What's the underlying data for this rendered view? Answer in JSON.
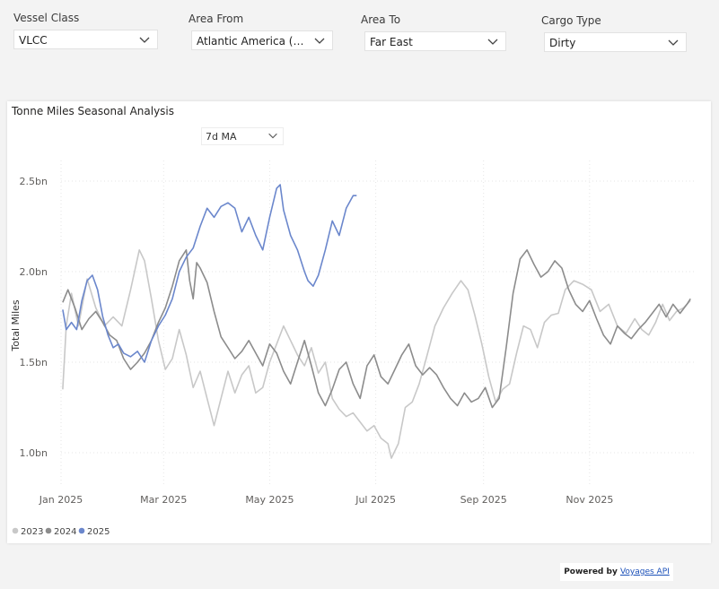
{
  "filters": [
    {
      "label": "Vessel Class",
      "value": "VLCC"
    },
    {
      "label": "Area From",
      "value": "Atlantic America (Parent..."
    },
    {
      "label": "Area To",
      "value": "Far East"
    },
    {
      "label": "Cargo Type",
      "value": "Dirty"
    }
  ],
  "card": {
    "title": "Tonne Miles Seasonal Analysis",
    "ma_value": "7d MA"
  },
  "powered": {
    "prefix": "Powered by",
    "link": "Voyages API"
  },
  "chart_data": {
    "type": "line",
    "title": "Tonne Miles Seasonal Analysis",
    "xlabel": "",
    "ylabel": "Total Miles",
    "x_ticks": [
      "Jan 2025",
      "Mar 2025",
      "May 2025",
      "Jul 2025",
      "Sep 2025",
      "Nov 2025"
    ],
    "y_ticks": [
      "1.0bn",
      "1.5bn",
      "2.0bn",
      "2.5bn"
    ],
    "ylim": [
      0.8,
      2.68
    ],
    "grid": true,
    "legend_position": "bottom-left",
    "series": [
      {
        "name": "2023",
        "color": "#c8c8c8",
        "points": [
          [
            1,
            1.35
          ],
          [
            3,
            1.7
          ],
          [
            6,
            1.88
          ],
          [
            10,
            1.7
          ],
          [
            15,
            1.96
          ],
          [
            20,
            1.8
          ],
          [
            25,
            1.7
          ],
          [
            30,
            1.75
          ],
          [
            35,
            1.7
          ],
          [
            40,
            1.9
          ],
          [
            45,
            2.12
          ],
          [
            48,
            2.06
          ],
          [
            52,
            1.85
          ],
          [
            56,
            1.62
          ],
          [
            60,
            1.46
          ],
          [
            64,
            1.52
          ],
          [
            68,
            1.68
          ],
          [
            72,
            1.54
          ],
          [
            76,
            1.36
          ],
          [
            80,
            1.45
          ],
          [
            84,
            1.3
          ],
          [
            88,
            1.15
          ],
          [
            92,
            1.3
          ],
          [
            96,
            1.45
          ],
          [
            100,
            1.33
          ],
          [
            104,
            1.43
          ],
          [
            108,
            1.48
          ],
          [
            112,
            1.33
          ],
          [
            116,
            1.36
          ],
          [
            120,
            1.5
          ],
          [
            124,
            1.6
          ],
          [
            128,
            1.7
          ],
          [
            132,
            1.62
          ],
          [
            136,
            1.54
          ],
          [
            140,
            1.48
          ],
          [
            144,
            1.58
          ],
          [
            148,
            1.44
          ],
          [
            152,
            1.5
          ],
          [
            156,
            1.3
          ],
          [
            160,
            1.24
          ],
          [
            164,
            1.2
          ],
          [
            168,
            1.22
          ],
          [
            172,
            1.17
          ],
          [
            176,
            1.12
          ],
          [
            180,
            1.15
          ],
          [
            184,
            1.08
          ],
          [
            188,
            1.05
          ],
          [
            190,
            0.97
          ],
          [
            194,
            1.05
          ],
          [
            198,
            1.25
          ],
          [
            202,
            1.28
          ],
          [
            206,
            1.38
          ],
          [
            210,
            1.52
          ],
          [
            215,
            1.7
          ],
          [
            220,
            1.8
          ],
          [
            225,
            1.88
          ],
          [
            230,
            1.95
          ],
          [
            234,
            1.9
          ],
          [
            238,
            1.76
          ],
          [
            242,
            1.6
          ],
          [
            246,
            1.42
          ],
          [
            250,
            1.28
          ],
          [
            254,
            1.35
          ],
          [
            258,
            1.38
          ],
          [
            262,
            1.55
          ],
          [
            266,
            1.7
          ],
          [
            270,
            1.68
          ],
          [
            274,
            1.58
          ],
          [
            278,
            1.72
          ],
          [
            282,
            1.76
          ],
          [
            286,
            1.77
          ],
          [
            290,
            1.9
          ],
          [
            295,
            1.95
          ],
          [
            300,
            1.93
          ],
          [
            305,
            1.9
          ],
          [
            310,
            1.78
          ],
          [
            315,
            1.82
          ],
          [
            320,
            1.7
          ],
          [
            325,
            1.66
          ],
          [
            330,
            1.74
          ],
          [
            334,
            1.68
          ],
          [
            338,
            1.65
          ],
          [
            342,
            1.72
          ],
          [
            346,
            1.82
          ],
          [
            350,
            1.73
          ],
          [
            354,
            1.78
          ],
          [
            358,
            1.8
          ],
          [
            362,
            1.84
          ]
        ]
      },
      {
        "name": "2024",
        "color": "#8c8c8c",
        "points": [
          [
            1,
            1.83
          ],
          [
            4,
            1.9
          ],
          [
            8,
            1.8
          ],
          [
            12,
            1.68
          ],
          [
            16,
            1.74
          ],
          [
            20,
            1.78
          ],
          [
            24,
            1.72
          ],
          [
            28,
            1.65
          ],
          [
            32,
            1.62
          ],
          [
            36,
            1.52
          ],
          [
            40,
            1.46
          ],
          [
            44,
            1.5
          ],
          [
            48,
            1.55
          ],
          [
            52,
            1.62
          ],
          [
            56,
            1.72
          ],
          [
            60,
            1.8
          ],
          [
            64,
            1.92
          ],
          [
            68,
            2.06
          ],
          [
            72,
            2.12
          ],
          [
            74,
            1.95
          ],
          [
            76,
            1.85
          ],
          [
            78,
            2.05
          ],
          [
            80,
            2.02
          ],
          [
            84,
            1.94
          ],
          [
            88,
            1.78
          ],
          [
            92,
            1.64
          ],
          [
            96,
            1.58
          ],
          [
            100,
            1.52
          ],
          [
            104,
            1.56
          ],
          [
            108,
            1.62
          ],
          [
            112,
            1.55
          ],
          [
            116,
            1.48
          ],
          [
            120,
            1.6
          ],
          [
            124,
            1.55
          ],
          [
            128,
            1.45
          ],
          [
            132,
            1.38
          ],
          [
            136,
            1.5
          ],
          [
            140,
            1.62
          ],
          [
            144,
            1.48
          ],
          [
            148,
            1.33
          ],
          [
            152,
            1.26
          ],
          [
            156,
            1.35
          ],
          [
            160,
            1.46
          ],
          [
            164,
            1.5
          ],
          [
            168,
            1.38
          ],
          [
            172,
            1.3
          ],
          [
            176,
            1.48
          ],
          [
            180,
            1.54
          ],
          [
            184,
            1.42
          ],
          [
            188,
            1.38
          ],
          [
            192,
            1.46
          ],
          [
            196,
            1.54
          ],
          [
            200,
            1.6
          ],
          [
            204,
            1.48
          ],
          [
            208,
            1.43
          ],
          [
            212,
            1.47
          ],
          [
            216,
            1.43
          ],
          [
            220,
            1.36
          ],
          [
            224,
            1.3
          ],
          [
            228,
            1.26
          ],
          [
            232,
            1.33
          ],
          [
            236,
            1.28
          ],
          [
            240,
            1.3
          ],
          [
            244,
            1.36
          ],
          [
            248,
            1.25
          ],
          [
            252,
            1.3
          ],
          [
            256,
            1.58
          ],
          [
            260,
            1.88
          ],
          [
            264,
            2.07
          ],
          [
            268,
            2.12
          ],
          [
            272,
            2.04
          ],
          [
            276,
            1.97
          ],
          [
            280,
            2.0
          ],
          [
            284,
            2.06
          ],
          [
            288,
            2.02
          ],
          [
            292,
            1.9
          ],
          [
            296,
            1.82
          ],
          [
            300,
            1.78
          ],
          [
            304,
            1.84
          ],
          [
            308,
            1.74
          ],
          [
            312,
            1.65
          ],
          [
            316,
            1.6
          ],
          [
            320,
            1.7
          ],
          [
            324,
            1.66
          ],
          [
            328,
            1.63
          ],
          [
            332,
            1.68
          ],
          [
            336,
            1.72
          ],
          [
            340,
            1.77
          ],
          [
            344,
            1.82
          ],
          [
            348,
            1.75
          ],
          [
            352,
            1.82
          ],
          [
            356,
            1.77
          ],
          [
            360,
            1.82
          ],
          [
            362,
            1.85
          ]
        ]
      },
      {
        "name": "2025",
        "color": "#6b87cc",
        "points": [
          [
            1,
            1.79
          ],
          [
            3,
            1.68
          ],
          [
            6,
            1.72
          ],
          [
            9,
            1.68
          ],
          [
            12,
            1.84
          ],
          [
            15,
            1.95
          ],
          [
            18,
            1.98
          ],
          [
            21,
            1.9
          ],
          [
            24,
            1.75
          ],
          [
            27,
            1.65
          ],
          [
            30,
            1.58
          ],
          [
            33,
            1.6
          ],
          [
            36,
            1.55
          ],
          [
            40,
            1.53
          ],
          [
            44,
            1.56
          ],
          [
            48,
            1.5
          ],
          [
            52,
            1.62
          ],
          [
            56,
            1.7
          ],
          [
            60,
            1.76
          ],
          [
            64,
            1.85
          ],
          [
            68,
            2.0
          ],
          [
            72,
            2.08
          ],
          [
            76,
            2.13
          ],
          [
            80,
            2.25
          ],
          [
            84,
            2.35
          ],
          [
            88,
            2.3
          ],
          [
            92,
            2.36
          ],
          [
            96,
            2.38
          ],
          [
            100,
            2.35
          ],
          [
            104,
            2.22
          ],
          [
            108,
            2.3
          ],
          [
            112,
            2.2
          ],
          [
            116,
            2.12
          ],
          [
            120,
            2.3
          ],
          [
            124,
            2.46
          ],
          [
            126,
            2.48
          ],
          [
            128,
            2.34
          ],
          [
            132,
            2.2
          ],
          [
            136,
            2.12
          ],
          [
            140,
            2.0
          ],
          [
            142,
            1.95
          ],
          [
            145,
            1.92
          ],
          [
            148,
            1.98
          ],
          [
            152,
            2.12
          ],
          [
            156,
            2.28
          ],
          [
            160,
            2.2
          ],
          [
            164,
            2.35
          ],
          [
            168,
            2.42
          ],
          [
            170,
            2.42
          ]
        ]
      }
    ]
  }
}
